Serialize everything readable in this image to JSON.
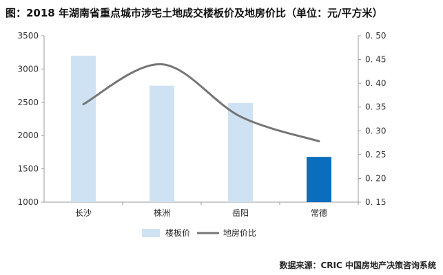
{
  "title": "图：2018 年湖南省重点城市涉宅土地成交楼板价及地房价比（单位：元/平方米）",
  "source": "数据来源：CRIC 中国房地产决策咨询系统",
  "chart_data": {
    "type": "bar+line",
    "categories": [
      "长沙",
      "株洲",
      "岳阳",
      "常德"
    ],
    "series": [
      {
        "name": "楼板价",
        "kind": "bar",
        "axis": "left",
        "values": [
          3200,
          2750,
          2490,
          1680
        ],
        "color": "#cfe2f3",
        "highlight_index": 3,
        "highlight_color": "#0a6ebd"
      },
      {
        "name": "地房价比",
        "kind": "line",
        "axis": "right",
        "values": [
          0.356,
          0.44,
          0.33,
          0.278
        ],
        "color": "#757575"
      }
    ],
    "y_left": {
      "min": 1000,
      "max": 3500,
      "ticks": [
        "1000",
        "1500",
        "2000",
        "2500",
        "3000",
        "3500"
      ]
    },
    "y_right": {
      "min": 0.15,
      "max": 0.5,
      "ticks": [
        "0. 15",
        "0. 20",
        "0. 25",
        "0. 30",
        "0. 35",
        "0. 40",
        "0. 45",
        "0. 50"
      ]
    },
    "legend": [
      "楼板价",
      "地房价比"
    ],
    "legend_position": "bottom",
    "grid": false
  }
}
